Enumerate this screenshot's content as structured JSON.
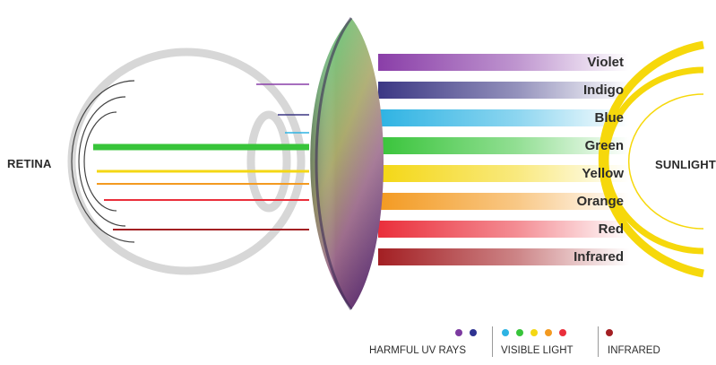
{
  "labels": {
    "retina": "RETINA",
    "sunlight": "SUNLIGHT"
  },
  "bands": [
    {
      "name": "Violet",
      "color": "#8a3ea8"
    },
    {
      "name": "Indigo",
      "color": "#3b3784"
    },
    {
      "name": "Blue",
      "color": "#2eb3e3"
    },
    {
      "name": "Green",
      "color": "#38c43a"
    },
    {
      "name": "Yellow",
      "color": "#f4d714"
    },
    {
      "name": "Orange",
      "color": "#f39a21"
    },
    {
      "name": "Red",
      "color": "#ea2f3b"
    },
    {
      "name": "Infrared",
      "color": "#a31f23"
    }
  ],
  "legend": {
    "uv": {
      "label": "HARMFUL UV RAYS",
      "colors": [
        "#7c3aa0",
        "#2e3391"
      ]
    },
    "visible": {
      "label": "VISIBLE LIGHT",
      "colors": [
        "#2eb3e3",
        "#38c43a",
        "#f4d714",
        "#f39a21",
        "#ea2f3b"
      ]
    },
    "infrared": {
      "label": "INFRARED",
      "colors": [
        "#a31f23"
      ]
    }
  }
}
